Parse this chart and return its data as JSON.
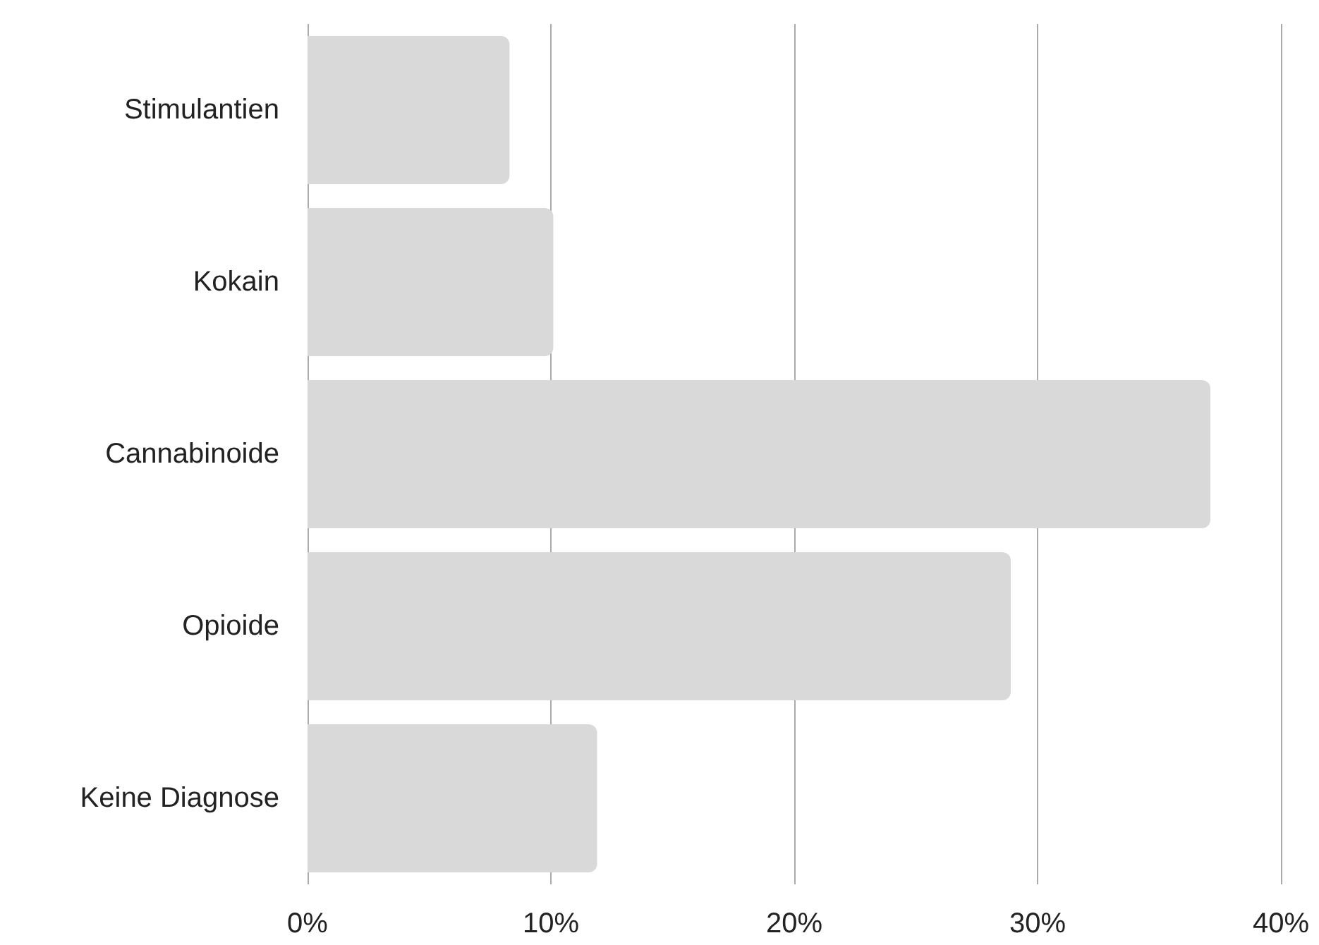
{
  "chart_data": {
    "type": "bar",
    "orientation": "horizontal",
    "categories": [
      "Stimulantien",
      "Kokain",
      "Cannabinoide",
      "Opioide",
      "Keine Diagnose"
    ],
    "values": [
      8.3,
      10.1,
      37.1,
      28.9,
      11.9
    ],
    "color": "#d9d9d9",
    "xlim": [
      0,
      40
    ],
    "xticks": [
      {
        "value": 0,
        "label": "0%"
      },
      {
        "value": 10,
        "label": "10%"
      },
      {
        "value": 20,
        "label": "20%"
      },
      {
        "value": 30,
        "label": "30%"
      },
      {
        "value": 40,
        "label": "40%"
      }
    ],
    "grid": "x"
  }
}
